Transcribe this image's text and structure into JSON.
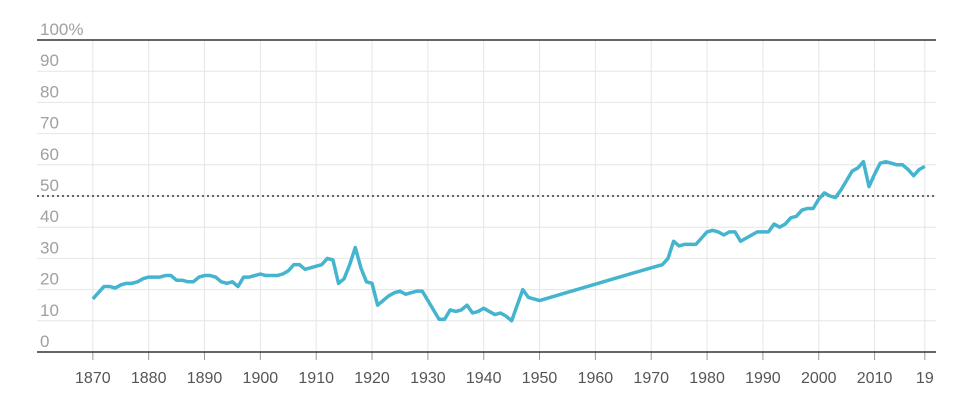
{
  "chart_data": {
    "type": "line",
    "x": [
      1870,
      1871,
      1872,
      1873,
      1874,
      1875,
      1876,
      1877,
      1878,
      1879,
      1880,
      1881,
      1882,
      1883,
      1884,
      1885,
      1886,
      1887,
      1888,
      1889,
      1890,
      1891,
      1892,
      1893,
      1894,
      1895,
      1896,
      1897,
      1898,
      1899,
      1900,
      1901,
      1902,
      1903,
      1904,
      1905,
      1906,
      1907,
      1908,
      1909,
      1910,
      1911,
      1912,
      1913,
      1914,
      1915,
      1916,
      1917,
      1918,
      1919,
      1920,
      1921,
      1922,
      1923,
      1924,
      1925,
      1926,
      1927,
      1928,
      1929,
      1930,
      1931,
      1932,
      1933,
      1934,
      1935,
      1936,
      1937,
      1938,
      1939,
      1940,
      1941,
      1942,
      1943,
      1944,
      1945,
      1946,
      1947,
      1948,
      1949,
      1950,
      1970,
      1972,
      1973,
      1974,
      1975,
      1976,
      1977,
      1978,
      1979,
      1980,
      1981,
      1982,
      1983,
      1984,
      1985,
      1986,
      1987,
      1988,
      1989,
      1990,
      1991,
      1992,
      1993,
      1994,
      1995,
      1996,
      1997,
      1998,
      1999,
      2000,
      2001,
      2002,
      2003,
      2004,
      2005,
      2006,
      2007,
      2008,
      2009,
      2010,
      2011,
      2012,
      2013,
      2014,
      2015,
      2016,
      2017,
      2018,
      2019
    ],
    "series": [
      {
        "color": "#45b4cf",
        "values": [
          17,
          19,
          21,
          21,
          20.5,
          21.5,
          22,
          22,
          22.5,
          23.5,
          24,
          24,
          24,
          24.5,
          24.5,
          23,
          23,
          22.5,
          22.5,
          24,
          24.5,
          24.5,
          24,
          22.5,
          22,
          22.5,
          21,
          24,
          24,
          24.5,
          25,
          24.5,
          24.5,
          24.5,
          25,
          26,
          28,
          28,
          26.5,
          27,
          27.5,
          28,
          30,
          29.5,
          22,
          23.5,
          28,
          33.5,
          27,
          22.5,
          22,
          15,
          16.5,
          18,
          19,
          19.5,
          18.5,
          19,
          19.5,
          19.5,
          16.5,
          13.5,
          10.5,
          10.5,
          13.5,
          13,
          13.5,
          15,
          12.5,
          13,
          14,
          13,
          12,
          12.5,
          11.5,
          10,
          15,
          20,
          17.5,
          17,
          16.5,
          27,
          28,
          30,
          35.5,
          34,
          34.5,
          34.5,
          34.5,
          36.5,
          38.5,
          39,
          38.5,
          37.5,
          38.5,
          38.5,
          35.5,
          36.5,
          37.5,
          38.5,
          38.5,
          38.5,
          41,
          40,
          41,
          43,
          43.5,
          45.5,
          46,
          46,
          49,
          51,
          50,
          49.5,
          52,
          55,
          58,
          59,
          61,
          53,
          57,
          60.5,
          61,
          60.5,
          60,
          60,
          58.5,
          56.5,
          58.5,
          59.5
        ]
      }
    ],
    "xlim": [
      1860,
      2021
    ],
    "xticks": [
      1870,
      1880,
      1890,
      1900,
      1910,
      1920,
      1930,
      1940,
      1950,
      1960,
      1970,
      1980,
      1990,
      2000,
      2010,
      {
        "value": 2019,
        "label": "19"
      }
    ],
    "ylim": [
      0,
      100
    ],
    "yticks": [
      0,
      10,
      20,
      30,
      40,
      50,
      60,
      70,
      80,
      90,
      {
        "value": 100,
        "label": "100%"
      }
    ],
    "reference_line": 50,
    "grid": true
  }
}
